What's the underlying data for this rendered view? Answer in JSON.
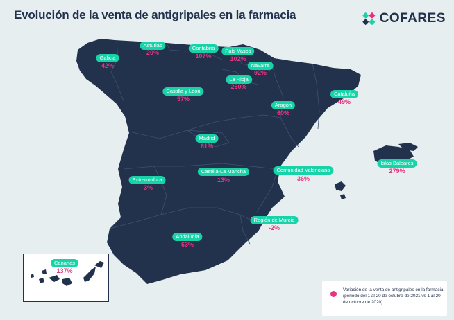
{
  "title": "Evolución de la venta de antigripales en la farmacia",
  "brand": {
    "name": "COFARES",
    "accent": "#19d3a8",
    "dark": "#22324d",
    "highlight": "#e8347f"
  },
  "regions": {
    "galicia": {
      "name": "Galicia",
      "value": "42%"
    },
    "asturias": {
      "name": "Asturias",
      "value": "20%"
    },
    "cantabria": {
      "name": "Cantabria",
      "value": "107%"
    },
    "pais_vasco": {
      "name": "País Vasco",
      "value": "102%"
    },
    "navarra": {
      "name": "Navarra",
      "value": "92%"
    },
    "la_rioja": {
      "name": "La Rioja",
      "value": "260%"
    },
    "castilla_leon": {
      "name": "Castilla y León",
      "value": "57%"
    },
    "aragon": {
      "name": "Aragón",
      "value": "60%"
    },
    "cataluna": {
      "name": "Cataluña",
      "value": "49%"
    },
    "madrid": {
      "name": "Madrid",
      "value": "61%"
    },
    "baleares": {
      "name": "Islas Baleares",
      "value": "279%"
    },
    "extremadura": {
      "name": "Extremadura",
      "value": "-3%"
    },
    "castilla_mancha": {
      "name": "Castilla-La Mancha",
      "value": "13%"
    },
    "valenciana": {
      "name": "Comunidad Valenciana",
      "value": "36%"
    },
    "murcia": {
      "name": "Región de Murcia",
      "value": "-2%"
    },
    "andalucia": {
      "name": "Andalucía",
      "value": "63%"
    },
    "canarias": {
      "name": "Canarias",
      "value": "137%"
    }
  },
  "legend": {
    "text": "Variación de la venta de antigripales en la farmacia (periodo del 1 al 20 de octubre de 2021 vs 1 al 20 de octubre de 2020)"
  }
}
